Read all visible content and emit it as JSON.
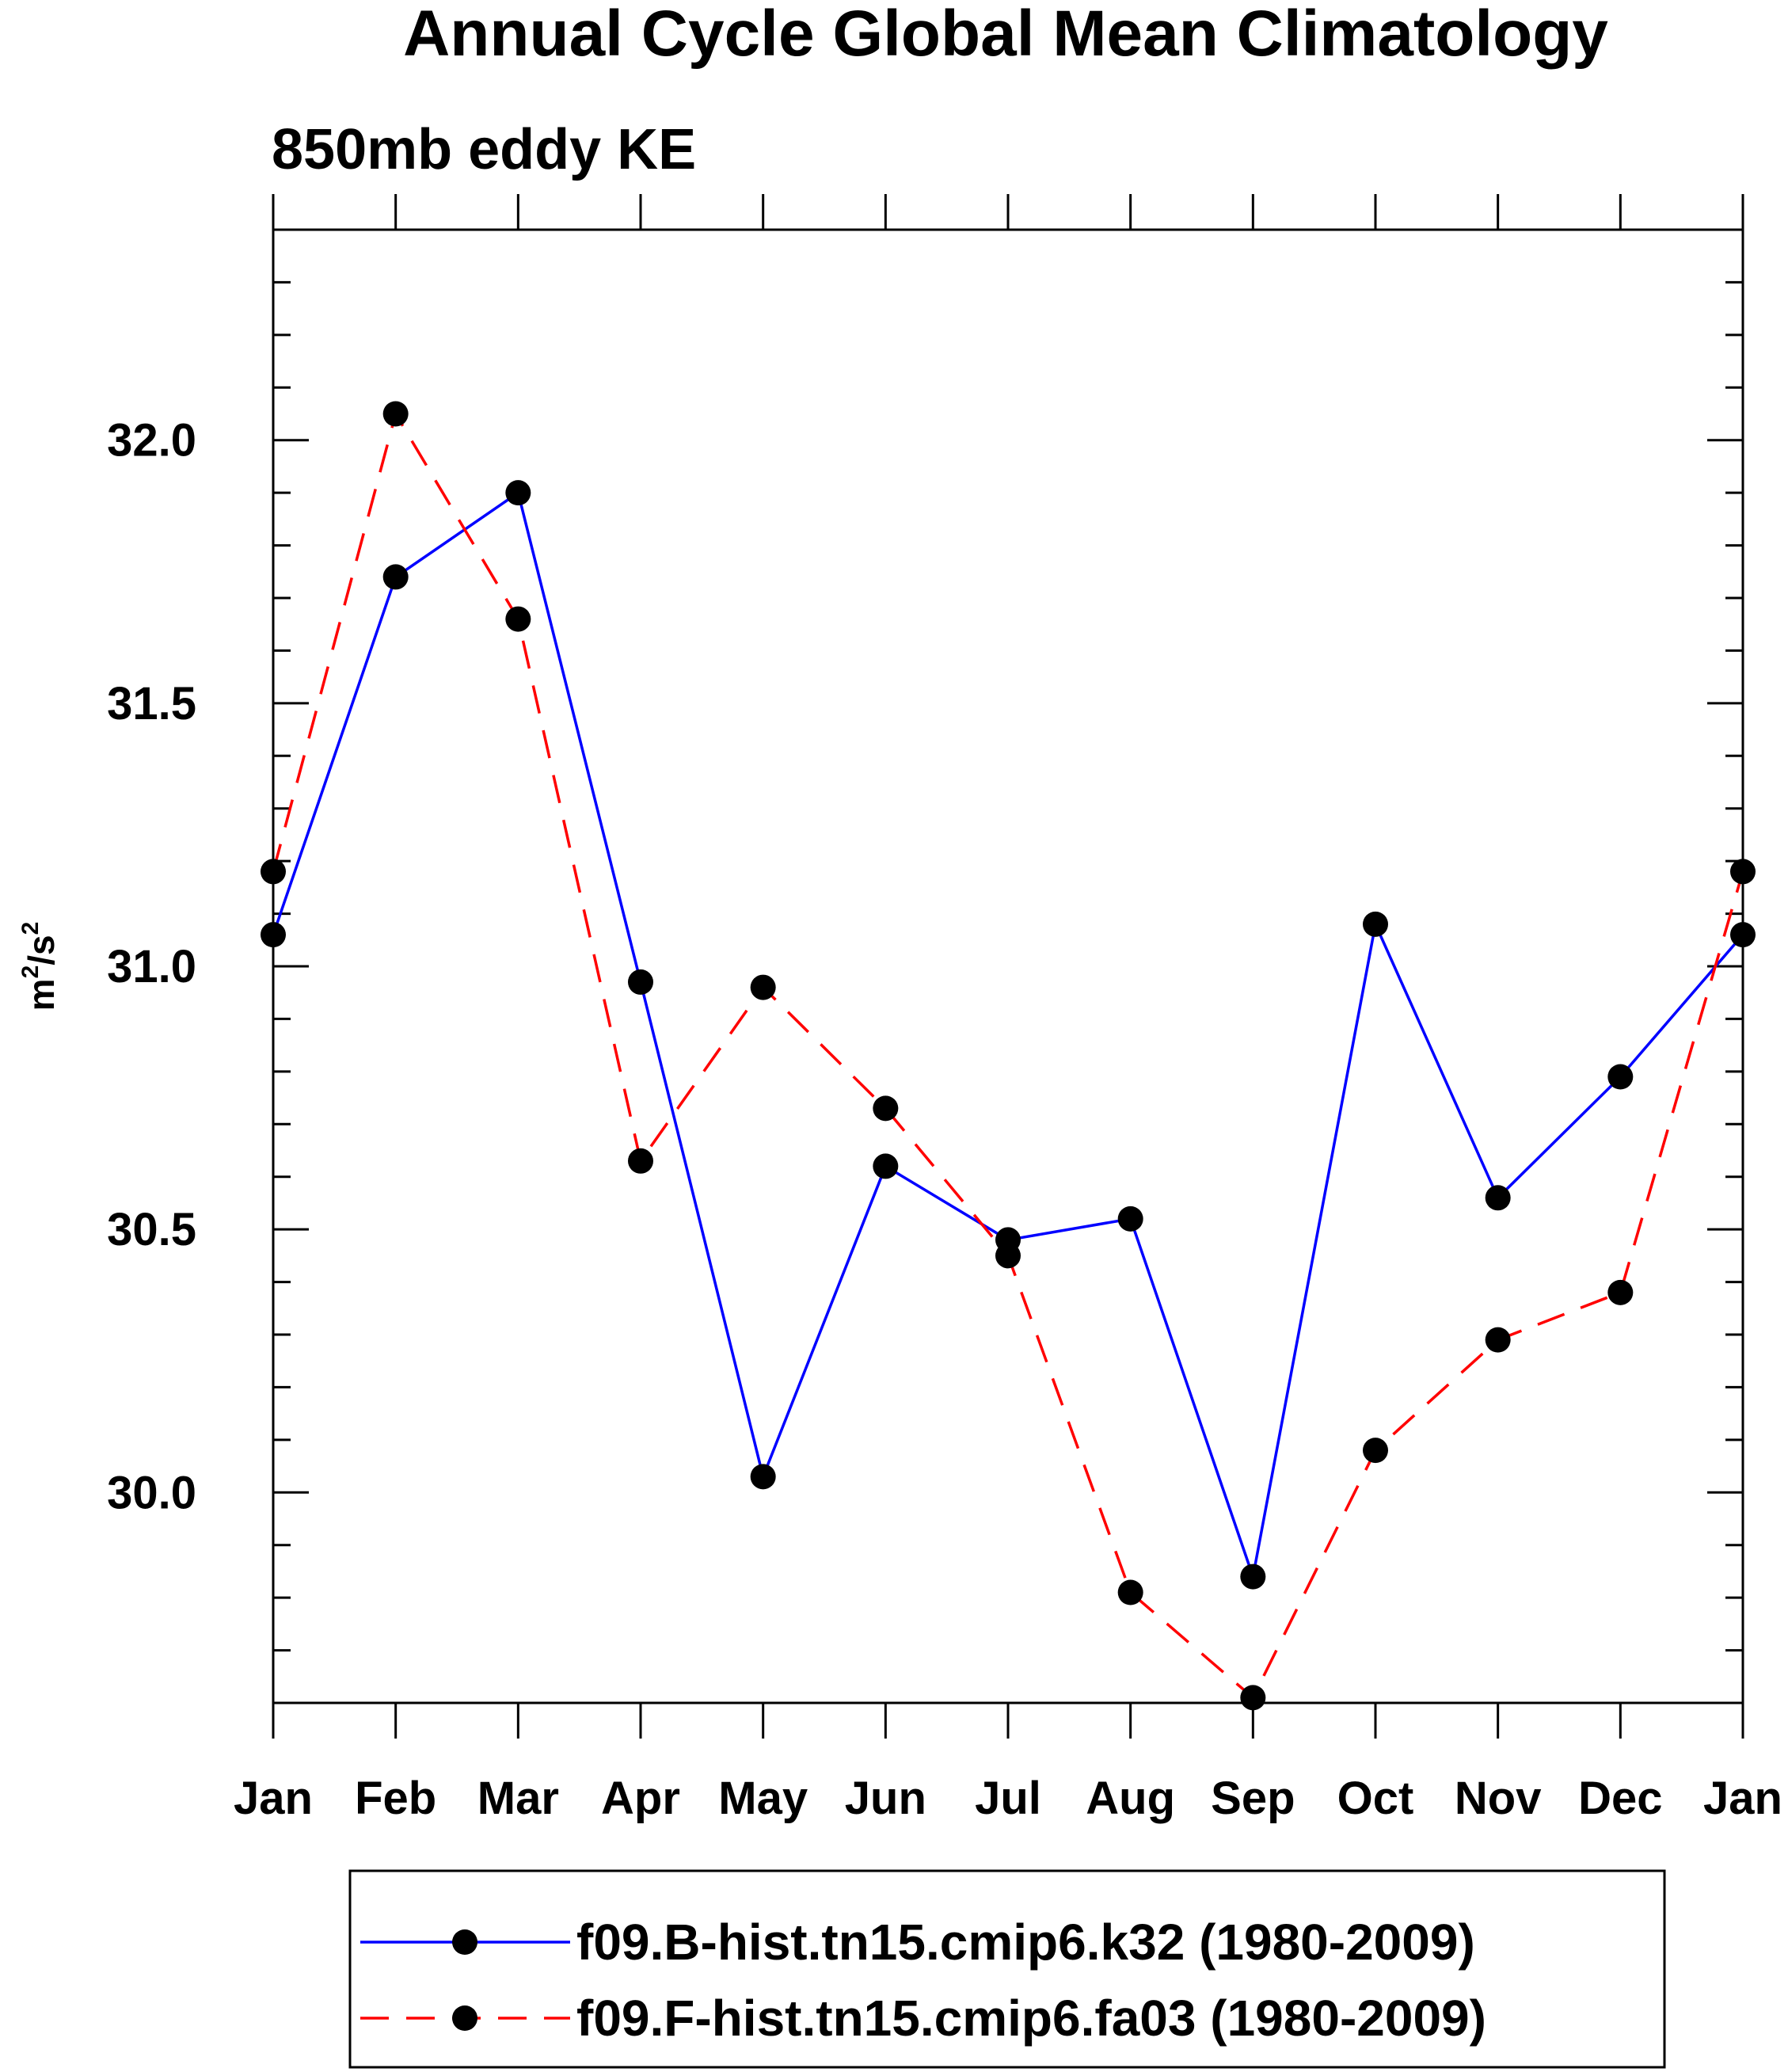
{
  "chart_data": {
    "type": "line",
    "title": "Annual Cycle Global Mean Climatology",
    "subtitle": "850mb eddy KE",
    "xlabel": "",
    "ylabel": {
      "base": "m",
      "sup1": "2",
      "mid": "/s",
      "sup2": "2"
    },
    "ylim": [
      29.6,
      32.4
    ],
    "yticks": [
      "30.0",
      "30.5",
      "31.0",
      "31.5",
      "32.0"
    ],
    "ytick_values": [
      30.0,
      30.5,
      31.0,
      31.5,
      32.0
    ],
    "categories": [
      "Jan",
      "Feb",
      "Mar",
      "Apr",
      "May",
      "Jun",
      "Jul",
      "Aug",
      "Sep",
      "Oct",
      "Nov",
      "Dec",
      "Jan"
    ],
    "grid": false,
    "legend_position": "bottom",
    "series": [
      {
        "name": "f09.B-hist.tn15.cmip6.k32 (1980-2009)",
        "color": "#0000ff",
        "style": "solid",
        "marker": "filled-circle",
        "values": [
          31.06,
          31.74,
          31.9,
          30.97,
          30.03,
          30.62,
          30.48,
          30.52,
          29.84,
          31.08,
          30.56,
          30.79,
          31.06
        ]
      },
      {
        "name": "f09.F-hist.tn15.cmip6.fa03 (1980-2009)",
        "color": "#ff0000",
        "style": "dashed",
        "marker": "filled-circle",
        "values": [
          31.18,
          32.05,
          31.66,
          30.63,
          30.96,
          30.73,
          30.45,
          29.81,
          29.61,
          30.08,
          30.29,
          30.38,
          31.18
        ]
      }
    ]
  }
}
